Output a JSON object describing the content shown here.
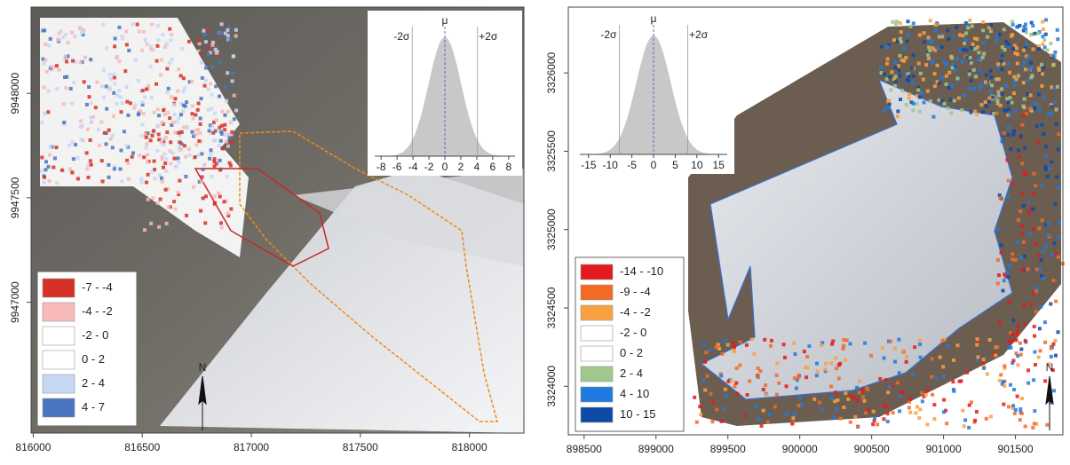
{
  "panels": [
    {
      "xticks": [
        816000,
        816500,
        817000,
        817500,
        818000
      ],
      "xlim": [
        815990,
        818250
      ],
      "yticks": [
        9947000,
        9947500,
        9948000
      ],
      "ylim": [
        9946374,
        9948413
      ],
      "legend": [
        {
          "label": "-7 - -4",
          "color": "#d73027"
        },
        {
          "label": "-4 - -2",
          "color": "#f7b9b9"
        },
        {
          "label": "-2 - 0",
          "color": "#ffffff"
        },
        {
          "label": "0 - 2",
          "color": "#ffffff"
        },
        {
          "label": "2 - 4",
          "color": "#c6d6f5"
        },
        {
          "label": "4 - 7",
          "color": "#4a74c0"
        }
      ],
      "inset": {
        "xticks": [
          -8,
          -6,
          -4,
          -2,
          0,
          2,
          4,
          6,
          8
        ],
        "xlim": [
          -8.8,
          8.8
        ],
        "labels": [
          "-2σ",
          "μ",
          "+2σ"
        ]
      },
      "north": "N"
    },
    {
      "xticks": [
        898500,
        899000,
        899500,
        900000,
        900500,
        901000,
        901500
      ],
      "xlim": [
        898390,
        901830
      ],
      "yticks": [
        3324000,
        3324500,
        3325000,
        3325500,
        3326000
      ],
      "ylim": [
        3323690,
        3326420
      ],
      "legend": [
        {
          "label": "-14 - -10",
          "color": "#e31a1c"
        },
        {
          "label": "-9 - -4",
          "color": "#f26a24"
        },
        {
          "label": "-4 - -2",
          "color": "#fba040"
        },
        {
          "label": "-2 - 0",
          "color": "#ffffff"
        },
        {
          "label": "0 - 2",
          "color": "#ffffff"
        },
        {
          "label": "2 - 4",
          "color": "#9fc88a"
        },
        {
          "label": "4 - 10",
          "color": "#1f7ae0"
        },
        {
          "label": "10 - 15",
          "color": "#0c4aa6"
        }
      ],
      "inset": {
        "xticks": [
          -15,
          -10,
          -5,
          0,
          5,
          10,
          15
        ],
        "xlim": [
          -17,
          17
        ],
        "labels": [
          "-2σ",
          "μ",
          "+2σ"
        ]
      },
      "north": "N"
    }
  ]
}
